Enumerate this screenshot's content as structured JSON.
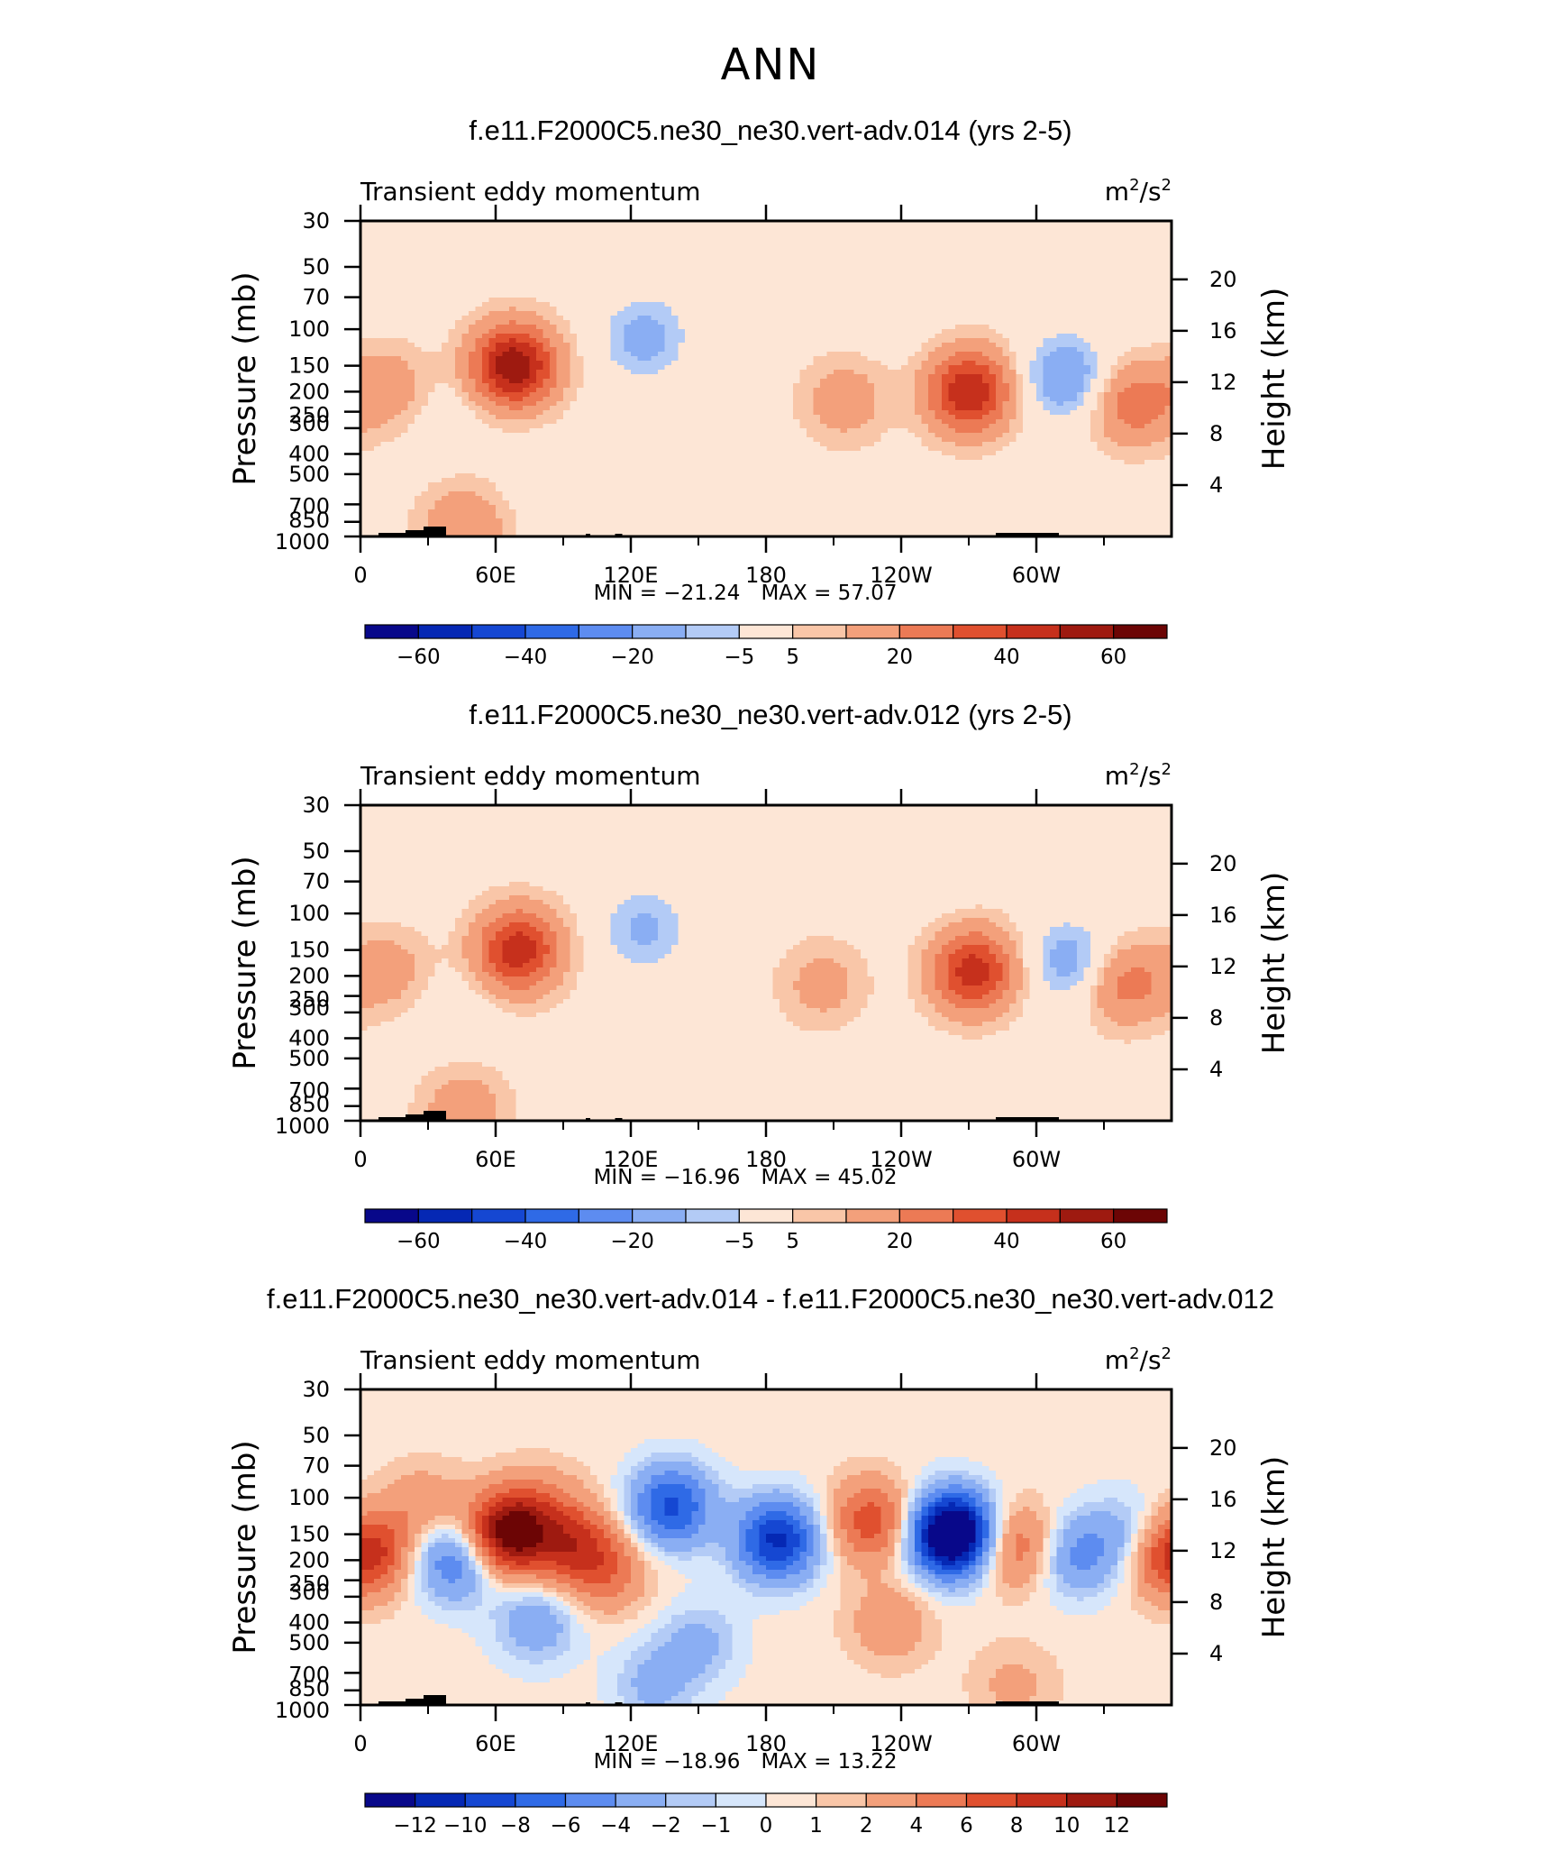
{
  "page_title": "ANN",
  "chart_data": [
    {
      "type": "heatmap",
      "title": "f.e11.F2000C5.ne30_ne30.vert-adv.014 (yrs 2-5)",
      "variable": "Transient eddy momentum",
      "units": "m²/s²",
      "units_base": "m",
      "units_exp": "2",
      "units_sep": "/s",
      "xlabel": "",
      "ylabel": "Pressure (mb)",
      "ylabel_right": "Height (km)",
      "y_ticks": [
        "30",
        "50",
        "70",
        "100",
        "150",
        "200",
        "250",
        "300",
        "400",
        "500",
        "700",
        "850",
        "1000"
      ],
      "y_tick_values": [
        30,
        50,
        70,
        100,
        150,
        200,
        250,
        300,
        400,
        500,
        700,
        850,
        1000
      ],
      "y_right_ticks": [
        "4",
        "8",
        "12",
        "16",
        "20"
      ],
      "y_right_values": [
        4,
        8,
        12,
        16,
        20
      ],
      "x_ticks": [
        "0",
        "60E",
        "120E",
        "180",
        "120W",
        "60W"
      ],
      "x_tick_values": [
        0,
        60,
        120,
        180,
        240,
        300
      ],
      "xlim": [
        0,
        360
      ],
      "ylim": [
        1000,
        30
      ],
      "min_label": "MIN = −21.24",
      "max_label": "MAX = 57.07",
      "stats": {
        "min": -21.24,
        "max": 57.07
      },
      "colorbar_labels": [
        "−60",
        "−40",
        "−20",
        "−5",
        "5",
        "20",
        "40",
        "60"
      ],
      "colorbar_values": [
        -70,
        -60,
        -50,
        -40,
        -30,
        -20,
        -10,
        -5,
        5,
        10,
        20,
        30,
        40,
        50,
        60,
        70
      ],
      "background_value": 2,
      "features": [
        {
          "lon": 68,
          "p": 150,
          "value": 57
        },
        {
          "lon": 12,
          "p": 190,
          "value": 14
        },
        {
          "lon": 126,
          "p": 110,
          "value": -16
        },
        {
          "lon": 215,
          "p": 220,
          "value": 14
        },
        {
          "lon": 270,
          "p": 200,
          "value": 48
        },
        {
          "lon": 313,
          "p": 170,
          "value": -21
        },
        {
          "lon": 343,
          "p": 230,
          "value": 24
        },
        {
          "lon": 46,
          "p": 900,
          "value": 18
        },
        {
          "lon": 40,
          "p": 260,
          "value": -4
        },
        {
          "lon": 10,
          "p": 40,
          "value": -4
        },
        {
          "lon": 160,
          "p": 50,
          "value": -3
        },
        {
          "lon": 240,
          "p": 80,
          "value": -3
        },
        {
          "lon": 350,
          "p": 60,
          "value": -4
        },
        {
          "lon": 80,
          "p": 500,
          "value": -3
        }
      ]
    },
    {
      "type": "heatmap",
      "title": "f.e11.F2000C5.ne30_ne30.vert-adv.012 (yrs 2-5)",
      "variable": "Transient eddy momentum",
      "units": "m²/s²",
      "units_base": "m",
      "units_exp": "2",
      "units_sep": "/s",
      "xlabel": "",
      "ylabel": "Pressure (mb)",
      "ylabel_right": "Height (km)",
      "y_ticks": [
        "30",
        "50",
        "70",
        "100",
        "150",
        "200",
        "250",
        "300",
        "400",
        "500",
        "700",
        "850",
        "1000"
      ],
      "y_tick_values": [
        30,
        50,
        70,
        100,
        150,
        200,
        250,
        300,
        400,
        500,
        700,
        850,
        1000
      ],
      "y_right_ticks": [
        "4",
        "8",
        "12",
        "16",
        "20"
      ],
      "y_right_values": [
        4,
        8,
        12,
        16,
        20
      ],
      "x_ticks": [
        "0",
        "60E",
        "120E",
        "180",
        "120W",
        "60W"
      ],
      "x_tick_values": [
        0,
        60,
        120,
        180,
        240,
        300
      ],
      "xlim": [
        0,
        360
      ],
      "ylim": [
        1000,
        30
      ],
      "min_label": "MIN = −16.96",
      "max_label": "MAX = 45.02",
      "stats": {
        "min": -16.96,
        "max": 45.02
      },
      "colorbar_labels": [
        "−60",
        "−40",
        "−20",
        "−5",
        "5",
        "20",
        "40",
        "60"
      ],
      "colorbar_values": [
        -70,
        -60,
        -50,
        -40,
        -30,
        -20,
        -10,
        -5,
        5,
        10,
        20,
        30,
        40,
        50,
        60,
        70
      ],
      "background_value": 2,
      "features": [
        {
          "lon": 70,
          "p": 150,
          "value": 45
        },
        {
          "lon": 12,
          "p": 190,
          "value": 13
        },
        {
          "lon": 126,
          "p": 120,
          "value": -14
        },
        {
          "lon": 205,
          "p": 220,
          "value": 12
        },
        {
          "lon": 272,
          "p": 190,
          "value": 44
        },
        {
          "lon": 315,
          "p": 170,
          "value": -17
        },
        {
          "lon": 340,
          "p": 220,
          "value": 22
        },
        {
          "lon": 46,
          "p": 900,
          "value": 16
        },
        {
          "lon": 42,
          "p": 300,
          "value": -4
        },
        {
          "lon": 10,
          "p": 40,
          "value": -4
        },
        {
          "lon": 160,
          "p": 50,
          "value": -3
        },
        {
          "lon": 250,
          "p": 70,
          "value": -3
        },
        {
          "lon": 300,
          "p": 700,
          "value": -3
        }
      ]
    },
    {
      "type": "heatmap",
      "title": "f.e11.F2000C5.ne30_ne30.vert-adv.014 - f.e11.F2000C5.ne30_ne30.vert-adv.012",
      "variable": "Transient eddy momentum",
      "units": "m²/s²",
      "units_base": "m",
      "units_exp": "2",
      "units_sep": "/s",
      "xlabel": "",
      "ylabel": "Pressure (mb)",
      "ylabel_right": "Height (km)",
      "y_ticks": [
        "30",
        "50",
        "70",
        "100",
        "150",
        "200",
        "250",
        "300",
        "400",
        "500",
        "700",
        "850",
        "1000"
      ],
      "y_tick_values": [
        30,
        50,
        70,
        100,
        150,
        200,
        250,
        300,
        400,
        500,
        700,
        850,
        1000
      ],
      "y_right_ticks": [
        "4",
        "8",
        "12",
        "16",
        "20"
      ],
      "y_right_values": [
        4,
        8,
        12,
        16,
        20
      ],
      "x_ticks": [
        "0",
        "60E",
        "120E",
        "180",
        "120W",
        "60W"
      ],
      "x_tick_values": [
        0,
        60,
        120,
        180,
        240,
        300
      ],
      "xlim": [
        0,
        360
      ],
      "ylim": [
        1000,
        30
      ],
      "min_label": "MIN = −18.96",
      "max_label": "MAX = 13.22",
      "stats": {
        "min": -18.96,
        "max": 13.22
      },
      "colorbar_labels": [
        "−12",
        "−10",
        "−8",
        "−6",
        "−4",
        "−2",
        "−1",
        "0",
        "1",
        "2",
        "4",
        "6",
        "8",
        "10",
        "12"
      ],
      "colorbar_values": [
        -14,
        -12,
        -10,
        -8,
        -6,
        -4,
        -2,
        -1,
        0,
        1,
        2,
        4,
        6,
        8,
        10,
        12,
        14
      ],
      "background_value": 0.5,
      "features": [
        {
          "lon": 65,
          "p": 150,
          "value": 13
        },
        {
          "lon": 95,
          "p": 170,
          "value": 7
        },
        {
          "lon": 5,
          "p": 180,
          "value": 6
        },
        {
          "lon": 110,
          "p": 230,
          "value": 4
        },
        {
          "lon": 42,
          "p": 200,
          "value": -7
        },
        {
          "lon": 138,
          "p": 110,
          "value": -9
        },
        {
          "lon": 185,
          "p": 160,
          "value": -11
        },
        {
          "lon": 227,
          "p": 130,
          "value": 7
        },
        {
          "lon": 263,
          "p": 150,
          "value": -19
        },
        {
          "lon": 290,
          "p": 170,
          "value": 6
        },
        {
          "lon": 318,
          "p": 190,
          "value": -5
        },
        {
          "lon": 340,
          "p": 150,
          "value": -3
        },
        {
          "lon": 357,
          "p": 200,
          "value": 4
        },
        {
          "lon": 78,
          "p": 400,
          "value": -4
        },
        {
          "lon": 150,
          "p": 500,
          "value": -3
        },
        {
          "lon": 235,
          "p": 400,
          "value": 3
        },
        {
          "lon": 80,
          "p": 110,
          "value": 3
        },
        {
          "lon": 28,
          "p": 110,
          "value": 3
        },
        {
          "lon": 130,
          "p": 800,
          "value": -3
        },
        {
          "lon": 290,
          "p": 800,
          "value": 2
        }
      ]
    }
  ]
}
